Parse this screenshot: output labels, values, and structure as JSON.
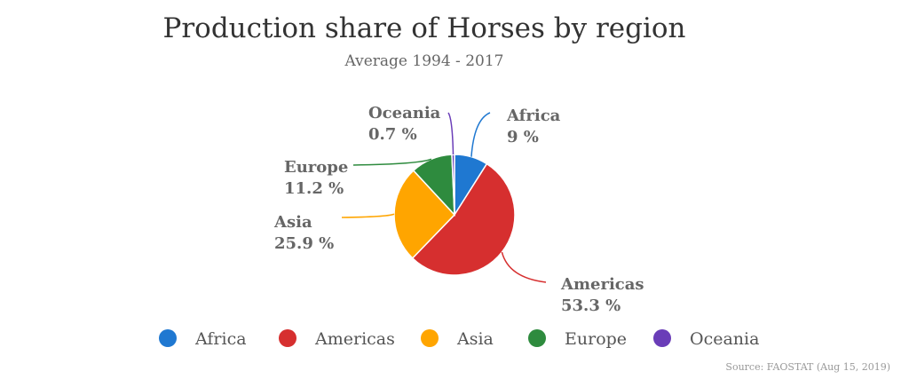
{
  "chart_data": {
    "type": "pie",
    "title": "Production share of Horses by region",
    "subtitle": "Average 1994 - 2017",
    "source": "Source: FAOSTAT (Aug 15, 2019)",
    "categories": [
      "Africa",
      "Americas",
      "Asia",
      "Europe",
      "Oceania"
    ],
    "values": [
      9,
      53.3,
      25.9,
      11.2,
      0.7
    ],
    "value_labels": [
      "9 %",
      "53.3 %",
      "25.9 %",
      "11.2 %",
      "0.7 %"
    ],
    "colors": [
      "#1f78d1",
      "#d62f2f",
      "#ffa500",
      "#2e8b3e",
      "#6a3db8"
    ],
    "legend_position": "bottom",
    "start_angle": "top, clockwise"
  }
}
